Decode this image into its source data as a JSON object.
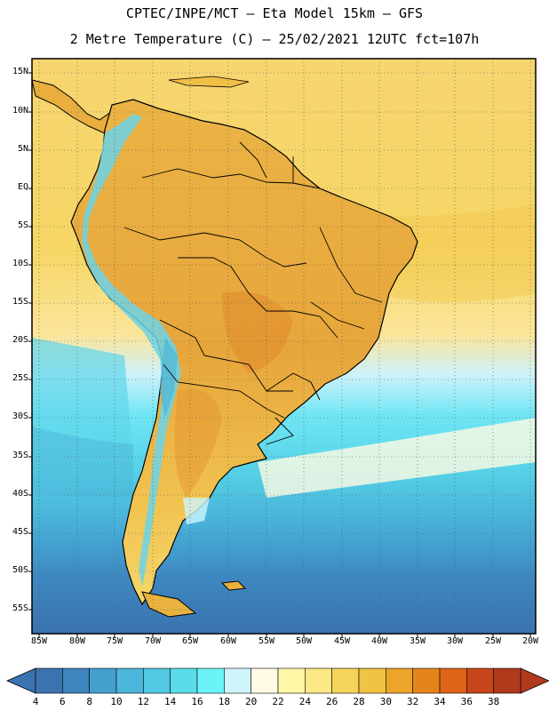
{
  "title_line1": "CPTEC/INPE/MCT –  Eta Model 15km – GFS",
  "title_line2": "2 Metre Temperature (C) – 25/02/2021 12UTC fct=107h",
  "lat_labels": [
    "15N",
    "10N",
    "5N",
    "EQ",
    "5S",
    "10S",
    "15S",
    "20S",
    "25S",
    "30S",
    "35S",
    "40S",
    "45S",
    "50S",
    "55S"
  ],
  "lon_labels": [
    "85W",
    "80W",
    "75W",
    "70W",
    "65W",
    "60W",
    "55W",
    "50W",
    "45W",
    "40W",
    "35W",
    "30W",
    "25W",
    "20W"
  ],
  "colorbar": {
    "labels": [
      "4",
      "6",
      "8",
      "10",
      "12",
      "14",
      "16",
      "18",
      "20",
      "22",
      "24",
      "26",
      "28",
      "30",
      "32",
      "34",
      "36",
      "38"
    ],
    "colors": [
      "#3a73b0",
      "#3e84bd",
      "#45a0cc",
      "#4cb6da",
      "#53c8e2",
      "#5adce9",
      "#6cf3f8",
      "#cdf5fb",
      "#fffbe4",
      "#fff6a6",
      "#fde886",
      "#f6d45b",
      "#f0c344",
      "#eba52b",
      "#e6841c",
      "#de6418",
      "#c8461b",
      "#b03a1c"
    ]
  },
  "colors": {
    "ocean_warm": "#f7d86a",
    "ocean_hot": "#f2c64a",
    "ocean_mild": "#fde886",
    "land": "#eab33e",
    "land_hot": "#e08a2c",
    "andes_cold": "#6cd3e8"
  }
}
